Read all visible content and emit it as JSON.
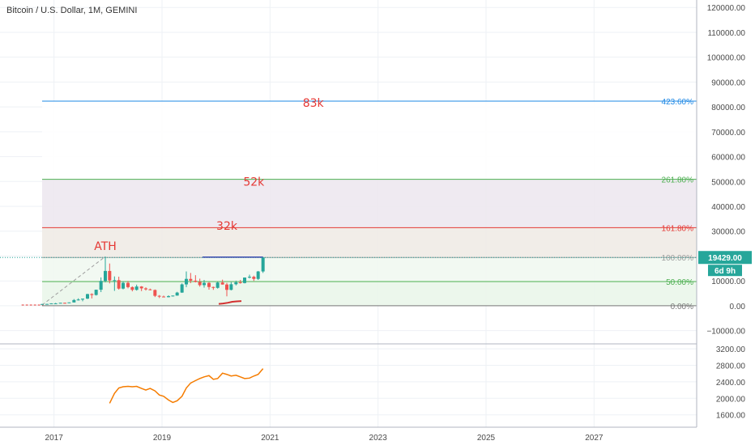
{
  "chart_data": [
    {
      "type": "candlestick",
      "title": "Bitcoin / U.S. Dollar, 1M, GEMINI",
      "ylim": [
        -15000,
        123000
      ],
      "yticks": [
        -10000,
        0,
        10000,
        20000,
        30000,
        40000,
        50000,
        60000,
        70000,
        80000,
        90000,
        100000,
        110000,
        120000
      ],
      "ytick_labels": [
        "−10000.00",
        "0.00",
        "10000.00",
        "20000.00",
        "30000.00",
        "40000.00",
        "50000.00",
        "60000.00",
        "70000.00",
        "80000.00",
        "90000.00",
        "100000.00",
        "110000.00",
        "120000.00"
      ],
      "xlim": [
        2016.0,
        2028.9
      ],
      "xticks": [
        2017,
        2019,
        2021,
        2023,
        2025,
        2027
      ],
      "xtick_labels": [
        "2017",
        "2019",
        "2021",
        "2023",
        "2025",
        "2027"
      ],
      "last_price": "19429.00",
      "countdown": "6d 9h",
      "candles": [
        {
          "t": 2016.78,
          "o": 600,
          "h": 750,
          "l": 580,
          "c": 700
        },
        {
          "t": 2016.87,
          "o": 700,
          "h": 760,
          "l": 690,
          "c": 740
        },
        {
          "t": 2016.95,
          "o": 740,
          "h": 980,
          "l": 730,
          "c": 965
        },
        {
          "t": 2017.03,
          "o": 965,
          "h": 1150,
          "l": 780,
          "c": 970
        },
        {
          "t": 2017.12,
          "o": 970,
          "h": 1200,
          "l": 960,
          "c": 1190
        },
        {
          "t": 2017.2,
          "o": 1190,
          "h": 1290,
          "l": 900,
          "c": 1080
        },
        {
          "t": 2017.28,
          "o": 1080,
          "h": 1350,
          "l": 1070,
          "c": 1345
        },
        {
          "t": 2017.37,
          "o": 1345,
          "h": 2700,
          "l": 1340,
          "c": 2300
        },
        {
          "t": 2017.45,
          "o": 2300,
          "h": 3000,
          "l": 2100,
          "c": 2500
        },
        {
          "t": 2017.53,
          "o": 2500,
          "h": 2900,
          "l": 1800,
          "c": 2870
        },
        {
          "t": 2017.62,
          "o": 2870,
          "h": 4800,
          "l": 2700,
          "c": 4700
        },
        {
          "t": 2017.7,
          "o": 4700,
          "h": 5000,
          "l": 2950,
          "c": 4340
        },
        {
          "t": 2017.78,
          "o": 4340,
          "h": 6500,
          "l": 4100,
          "c": 6450
        },
        {
          "t": 2017.87,
          "o": 6450,
          "h": 11400,
          "l": 5500,
          "c": 10000
        },
        {
          "t": 2017.95,
          "o": 10000,
          "h": 19800,
          "l": 9400,
          "c": 14000
        },
        {
          "t": 2018.03,
          "o": 14000,
          "h": 17000,
          "l": 9000,
          "c": 10200
        },
        {
          "t": 2018.12,
          "o": 10200,
          "h": 11800,
          "l": 6000,
          "c": 10300
        },
        {
          "t": 2018.2,
          "o": 10300,
          "h": 11700,
          "l": 6500,
          "c": 6900
        },
        {
          "t": 2018.28,
          "o": 6900,
          "h": 9800,
          "l": 6600,
          "c": 9200
        },
        {
          "t": 2018.37,
          "o": 9200,
          "h": 10000,
          "l": 7000,
          "c": 7500
        },
        {
          "t": 2018.45,
          "o": 7500,
          "h": 7800,
          "l": 5800,
          "c": 6400
        },
        {
          "t": 2018.53,
          "o": 6400,
          "h": 8500,
          "l": 6100,
          "c": 7750
        },
        {
          "t": 2018.62,
          "o": 7750,
          "h": 7900,
          "l": 5900,
          "c": 7000
        },
        {
          "t": 2018.7,
          "o": 7000,
          "h": 7400,
          "l": 6100,
          "c": 6600
        },
        {
          "t": 2018.78,
          "o": 6600,
          "h": 6900,
          "l": 6200,
          "c": 6350
        },
        {
          "t": 2018.87,
          "o": 6350,
          "h": 6550,
          "l": 3500,
          "c": 4000
        },
        {
          "t": 2018.95,
          "o": 4000,
          "h": 4300,
          "l": 3100,
          "c": 3700
        },
        {
          "t": 2019.03,
          "o": 3700,
          "h": 4100,
          "l": 3400,
          "c": 3450
        },
        {
          "t": 2019.12,
          "o": 3450,
          "h": 4200,
          "l": 3400,
          "c": 3850
        },
        {
          "t": 2019.2,
          "o": 3850,
          "h": 4100,
          "l": 3700,
          "c": 4100
        },
        {
          "t": 2019.28,
          "o": 4100,
          "h": 5600,
          "l": 4050,
          "c": 5300
        },
        {
          "t": 2019.37,
          "o": 5300,
          "h": 9000,
          "l": 5200,
          "c": 8600
        },
        {
          "t": 2019.45,
          "o": 8600,
          "h": 13800,
          "l": 7500,
          "c": 10800
        },
        {
          "t": 2019.53,
          "o": 10800,
          "h": 13200,
          "l": 9100,
          "c": 10100
        },
        {
          "t": 2019.62,
          "o": 10100,
          "h": 12300,
          "l": 9400,
          "c": 9600
        },
        {
          "t": 2019.7,
          "o": 9600,
          "h": 10900,
          "l": 7700,
          "c": 8300
        },
        {
          "t": 2019.78,
          "o": 8300,
          "h": 10400,
          "l": 7300,
          "c": 9200
        },
        {
          "t": 2019.87,
          "o": 9200,
          "h": 9500,
          "l": 6500,
          "c": 7550
        },
        {
          "t": 2019.95,
          "o": 7550,
          "h": 7700,
          "l": 6400,
          "c": 7200
        },
        {
          "t": 2020.03,
          "o": 7200,
          "h": 9600,
          "l": 6900,
          "c": 9350
        },
        {
          "t": 2020.12,
          "o": 9350,
          "h": 10500,
          "l": 8500,
          "c": 8550
        },
        {
          "t": 2020.2,
          "o": 8550,
          "h": 9200,
          "l": 3800,
          "c": 6400
        },
        {
          "t": 2020.28,
          "o": 6400,
          "h": 9500,
          "l": 6200,
          "c": 8650
        },
        {
          "t": 2020.37,
          "o": 8650,
          "h": 10100,
          "l": 8200,
          "c": 9450
        },
        {
          "t": 2020.45,
          "o": 9450,
          "h": 10400,
          "l": 8900,
          "c": 9150
        },
        {
          "t": 2020.53,
          "o": 9150,
          "h": 11400,
          "l": 9000,
          "c": 11350
        },
        {
          "t": 2020.62,
          "o": 11350,
          "h": 12500,
          "l": 11000,
          "c": 11650
        },
        {
          "t": 2020.7,
          "o": 11650,
          "h": 12100,
          "l": 10000,
          "c": 10800
        },
        {
          "t": 2020.78,
          "o": 10800,
          "h": 14000,
          "l": 10400,
          "c": 13800
        },
        {
          "t": 2020.87,
          "o": 13800,
          "h": 19429,
          "l": 13200,
          "c": 19429
        }
      ],
      "volume_line": [
        {
          "t": 2017.45,
          "v": 50
        },
        {
          "t": 2017.53,
          "v": 120
        },
        {
          "t": 2017.62,
          "v": 260
        },
        {
          "t": 2017.7,
          "v": 430
        },
        {
          "t": 2017.78,
          "v": 520
        },
        {
          "t": 2017.87,
          "v": 560
        }
      ],
      "ath_line": {
        "t1": 2016.78,
        "t2": 2017.95,
        "v1": 300,
        "v2": 19800
      },
      "prior_high_line": {
        "t1": 2019.75,
        "t2": 2020.87,
        "v": 19600
      },
      "left_marker": {
        "t1": 2016.4,
        "t2": 2016.8,
        "v": 300
      },
      "fib": {
        "t_start": 2016.78,
        "levels": [
          {
            "pct": "0.00%",
            "v": 0,
            "color": "#777777",
            "fill": "#f4fbf4"
          },
          {
            "pct": "50.00%",
            "v": 9725,
            "color": "#4caf50",
            "fill": "#eaf6ea"
          },
          {
            "pct": "100.00%",
            "v": 19429,
            "color": "#9e9e9e",
            "fill": "#f1f8f1"
          },
          {
            "pct": "161.80%",
            "v": 31430,
            "color": "#e53935",
            "fill": "#f0ebe6"
          },
          {
            "pct": "261.80%",
            "v": 50860,
            "color": "#4caf50",
            "fill": "#ede8ef"
          },
          {
            "pct": "423.60%",
            "v": 82300,
            "color": "#1e88e5",
            "fill": "#ffffff"
          }
        ]
      },
      "annotations": [
        {
          "text": "ATH",
          "t": 2017.95,
          "v": 22500,
          "color": "#e53935"
        },
        {
          "text": "32k",
          "t": 2020.2,
          "v": 30500,
          "color": "#e53935"
        },
        {
          "text": "52k",
          "t": 2020.7,
          "v": 48300,
          "color": "#e53935"
        },
        {
          "text": "83k",
          "t": 2021.8,
          "v": 80100,
          "color": "#e53935"
        }
      ]
    },
    {
      "type": "line",
      "ylim": [
        1300,
        3300
      ],
      "yticks": [
        1600,
        2000,
        2400,
        2800,
        3200
      ],
      "ytick_labels": [
        "1600.00",
        "2000.00",
        "2400.00",
        "2800.00",
        "3200.00"
      ],
      "series": [
        {
          "color": "#f57c00",
          "points": [
            {
              "t": 2018.03,
              "v": 1880
            },
            {
              "t": 2018.12,
              "v": 2120
            },
            {
              "t": 2018.2,
              "v": 2250
            },
            {
              "t": 2018.28,
              "v": 2280
            },
            {
              "t": 2018.37,
              "v": 2290
            },
            {
              "t": 2018.45,
              "v": 2280
            },
            {
              "t": 2018.53,
              "v": 2290
            },
            {
              "t": 2018.62,
              "v": 2240
            },
            {
              "t": 2018.7,
              "v": 2200
            },
            {
              "t": 2018.78,
              "v": 2240
            },
            {
              "t": 2018.87,
              "v": 2180
            },
            {
              "t": 2018.95,
              "v": 2080
            },
            {
              "t": 2019.03,
              "v": 2050
            },
            {
              "t": 2019.12,
              "v": 1960
            },
            {
              "t": 2019.2,
              "v": 1900
            },
            {
              "t": 2019.28,
              "v": 1940
            },
            {
              "t": 2019.37,
              "v": 2050
            },
            {
              "t": 2019.45,
              "v": 2250
            },
            {
              "t": 2019.53,
              "v": 2370
            },
            {
              "t": 2019.62,
              "v": 2430
            },
            {
              "t": 2019.7,
              "v": 2480
            },
            {
              "t": 2019.78,
              "v": 2520
            },
            {
              "t": 2019.87,
              "v": 2550
            },
            {
              "t": 2019.95,
              "v": 2460
            },
            {
              "t": 2020.03,
              "v": 2480
            },
            {
              "t": 2020.12,
              "v": 2610
            },
            {
              "t": 2020.2,
              "v": 2580
            },
            {
              "t": 2020.28,
              "v": 2540
            },
            {
              "t": 2020.37,
              "v": 2560
            },
            {
              "t": 2020.45,
              "v": 2520
            },
            {
              "t": 2020.53,
              "v": 2480
            },
            {
              "t": 2020.62,
              "v": 2490
            },
            {
              "t": 2020.7,
              "v": 2540
            },
            {
              "t": 2020.78,
              "v": 2580
            },
            {
              "t": 2020.87,
              "v": 2720
            }
          ]
        }
      ]
    }
  ]
}
